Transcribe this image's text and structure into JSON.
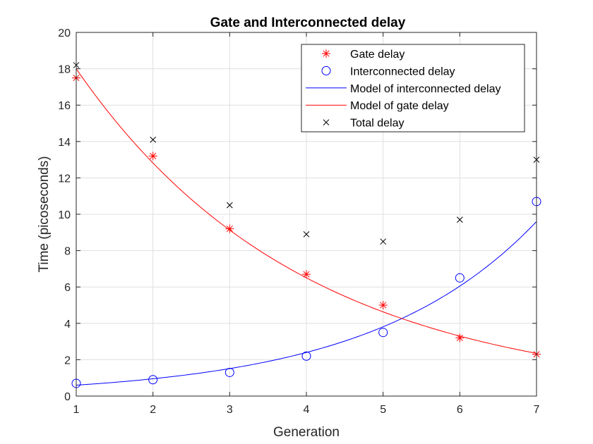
{
  "chart_data": {
    "type": "scatter",
    "title": "Gate and Interconnected delay",
    "xlabel": "Generation",
    "ylabel": "Time (picoseconds)",
    "xlim": [
      1,
      7
    ],
    "ylim": [
      0,
      20
    ],
    "xticks": [
      "1",
      "2",
      "3",
      "4",
      "5",
      "6",
      "7"
    ],
    "yticks": [
      "0",
      "2",
      "4",
      "6",
      "8",
      "10",
      "12",
      "14",
      "16",
      "18",
      "20"
    ],
    "grid": true,
    "legend_position": "top-right",
    "x": [
      1,
      2,
      3,
      4,
      5,
      6,
      7
    ],
    "series": [
      {
        "name": "Gate delay",
        "marker": "asterisk",
        "color": "#ff0000",
        "values": [
          17.5,
          13.2,
          9.2,
          6.7,
          5.0,
          3.2,
          2.3
        ]
      },
      {
        "name": "Interconnected delay",
        "marker": "circle",
        "color": "#0000ff",
        "values": [
          0.7,
          0.9,
          1.3,
          2.2,
          3.5,
          6.5,
          10.7
        ]
      },
      {
        "name": "Model of interconnected delay",
        "style": "line",
        "color": "#0000ff",
        "model": "exponential",
        "values": [
          0.6,
          0.95,
          1.5,
          2.37,
          3.75,
          6.06,
          9.6
        ]
      },
      {
        "name": "Model of gate delay",
        "style": "line",
        "color": "#ff0000",
        "model": "exponential",
        "values": [
          18.0,
          12.8,
          9.1,
          6.5,
          4.6,
          3.3,
          2.35
        ]
      },
      {
        "name": "Total delay",
        "marker": "x",
        "color": "#000000",
        "values": [
          18.2,
          14.1,
          10.5,
          8.9,
          8.5,
          9.7,
          13.0
        ]
      }
    ]
  }
}
